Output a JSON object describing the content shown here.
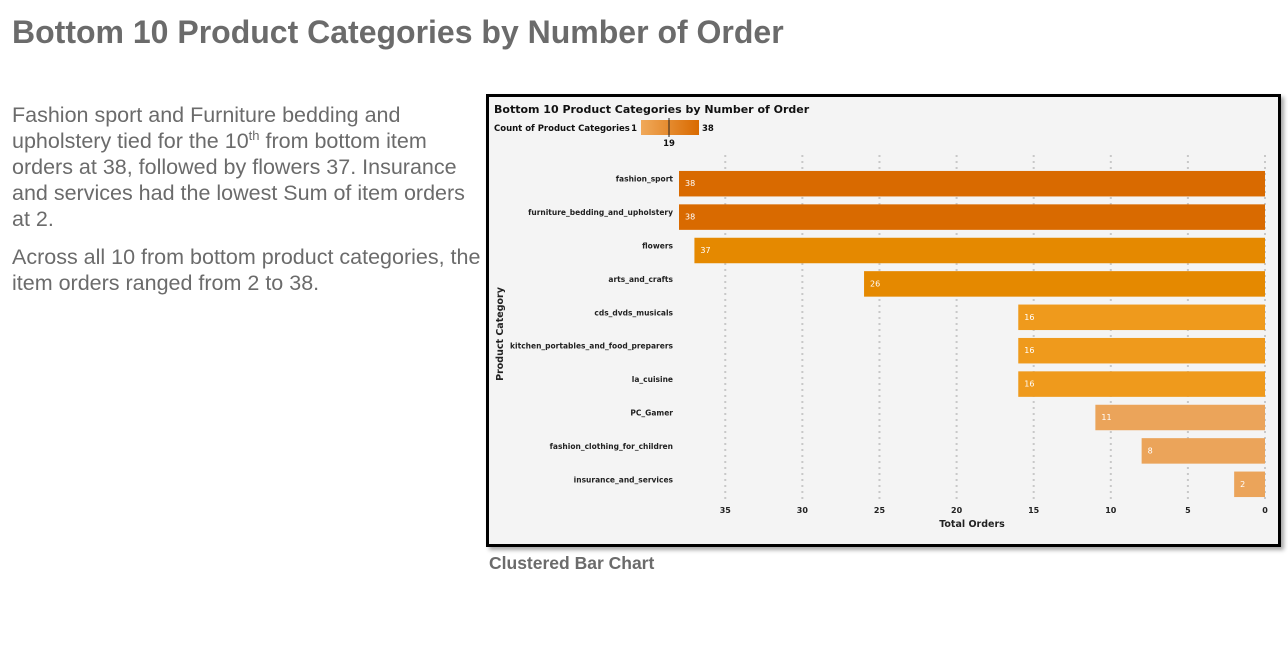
{
  "page": {
    "title": "Bottom 10 Product Categories by Number of Order",
    "narrative": {
      "p1_part1": "Fashion sport and Furniture bedding and upholstery tied for the 10",
      "p1_sup": "th",
      "p1_part2": " from bottom item orders at 38, followed by flowers 37. Insurance and services had the lowest Sum of item orders at 2.",
      "p2": "Across all 10 from bottom product categories, the item orders ranged from 2 to 38."
    },
    "caption": "Clustered Bar Chart"
  },
  "chart_data": {
    "type": "bar",
    "orientation": "horizontal",
    "x_axis_reversed": true,
    "title": "Bottom 10 Product Categories by Number of Order",
    "legend": {
      "label": "Count of Product Categories",
      "min": "1",
      "max": "38",
      "mid": "19",
      "color_low": "#f0a95a",
      "color_high": "#d96a00",
      "placement": "top-left"
    },
    "categories": [
      "fashion_sport",
      "furniture_bedding_and_upholstery",
      "flowers",
      "arts_and_crafts",
      "cds_dvds_musicals",
      "kitchen_portables_and_food_preparers",
      "la_cuisine",
      "PC_Gamer",
      "fashion_clothing_for_children",
      "insurance_and_services"
    ],
    "values": [
      38,
      38,
      37,
      26,
      16,
      16,
      16,
      11,
      8,
      2
    ],
    "bar_colors": [
      "#d96a00",
      "#d96a00",
      "#e58900",
      "#e58900",
      "#ef9a1c",
      "#ef9a1c",
      "#ef9a1c",
      "#eba45a",
      "#eba45a",
      "#eba45a"
    ],
    "xlabel": "Total Orders",
    "ylabel": "Product Category",
    "xlim": [
      0,
      38
    ],
    "xticks": [
      35,
      30,
      25,
      20,
      15,
      10,
      5,
      0
    ],
    "grid": true
  }
}
